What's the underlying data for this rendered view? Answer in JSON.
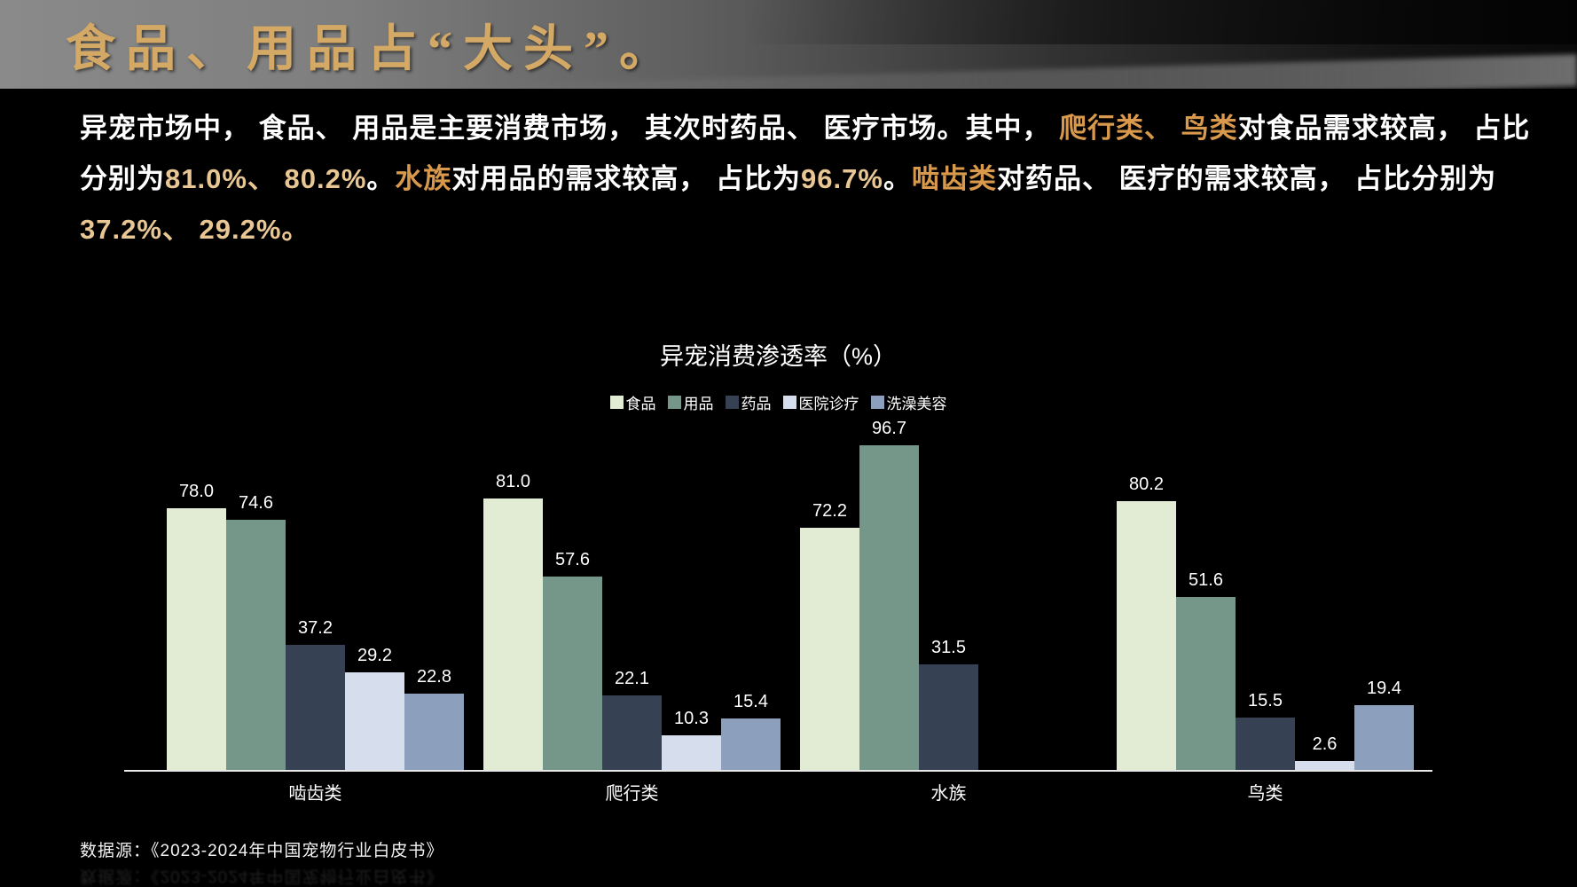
{
  "header": {
    "title": "食品、用品占“大头”。"
  },
  "colors": {
    "title_gold": "#d3a965",
    "highlight_name": "#d8994d",
    "highlight_number": "#e9c795",
    "axis": "#e8e8e8",
    "background": "#000000",
    "header_gray": "#8a8a8a"
  },
  "paragraph": {
    "lines": [
      [
        {
          "text": "异宠市场中， 食品、 用品是主要消费市场， 其次时药品、 医疗市场。其中， ",
          "style": "normal"
        },
        {
          "text": "爬行类、 鸟类",
          "style": "name"
        },
        {
          "text": "对食品需求较高， 占比",
          "style": "normal"
        }
      ],
      [
        {
          "text": "分别为",
          "style": "normal"
        },
        {
          "text": "81.0%、 80.2%",
          "style": "number"
        },
        {
          "text": "。",
          "style": "normal"
        },
        {
          "text": "水族",
          "style": "name"
        },
        {
          "text": "对用品的需求较高， 占比为",
          "style": "normal"
        },
        {
          "text": "96.7%",
          "style": "number"
        },
        {
          "text": "。",
          "style": "normal"
        },
        {
          "text": "啮齿类",
          "style": "name"
        },
        {
          "text": "对药品、 医疗的需求较高， 占比分别为",
          "style": "normal"
        }
      ],
      [
        {
          "text": "37.2%、 29.2%。",
          "style": "number"
        }
      ]
    ]
  },
  "chart_data": {
    "type": "bar",
    "title": "异宠消费渗透率（%）",
    "categories": [
      "啮齿类",
      "爬行类",
      "水族",
      "鸟类"
    ],
    "series": [
      {
        "name": "食品",
        "color": "#e2ecd4",
        "values": [
          78.0,
          81.0,
          72.2,
          80.2
        ]
      },
      {
        "name": "用品",
        "color": "#74978a",
        "values": [
          74.6,
          57.6,
          96.7,
          51.6
        ]
      },
      {
        "name": "药品",
        "color": "#364153",
        "values": [
          37.2,
          22.1,
          31.5,
          15.5
        ]
      },
      {
        "name": "医院诊疗",
        "color": "#d6deee",
        "values": [
          29.2,
          10.3,
          null,
          2.6
        ]
      },
      {
        "name": "洗澡美容",
        "color": "#8ca0bd",
        "values": [
          22.8,
          15.4,
          null,
          19.4
        ]
      }
    ],
    "ylim": [
      0,
      100
    ],
    "grid": false,
    "legend_position": "top",
    "value_labels": true,
    "xlabel": "",
    "ylabel": ""
  },
  "footer": {
    "source": "数据源：《2023-2024年中国宠物行业白皮书》"
  }
}
